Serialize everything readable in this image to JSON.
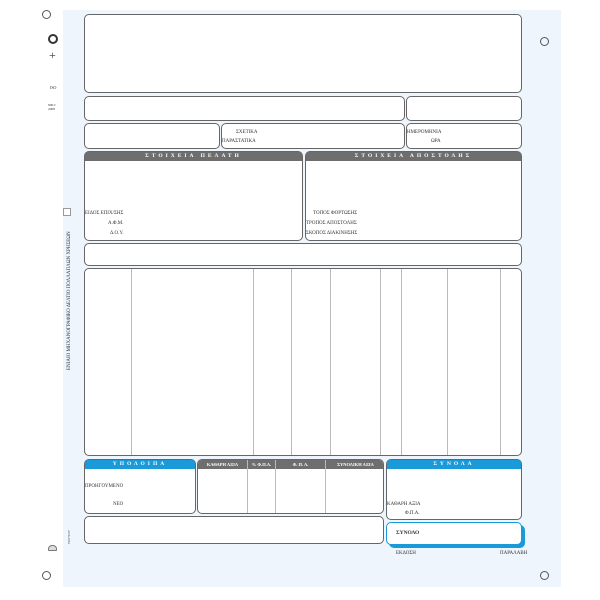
{
  "form": {
    "ref_label": "ΣΧΕΤΙΚΑ",
    "docs_label": "ΠΑΡΑΣΤΑΤΙΚΑ",
    "date_label": "ΗΜΕΡΟΜΗΝΙΑ",
    "time_label": "ΩΡΑ",
    "customer_header": "ΣΤΟΙΧΕΙΑ ΠΕΛΑΤΗ",
    "shipping_header": "ΣΤΟΙΧΕΙΑ ΑΠΟΣΤΟΛΗΣ",
    "customer_fields": [
      "ΕΙΔΟΣ ΕΠΙΧ/ΣΗΣ",
      "Α.Φ.Μ.",
      "Δ.Ο.Υ."
    ],
    "shipping_fields": [
      "ΤΟΠΟΣ ΦΟΡΤΩΣΗΣ",
      "ΤΡΟΠΟΣ ΑΠΟΣΤΟΛΗΣ",
      "ΣΚΟΠΟΣ ΔΙΑΚΙΝΗΣΗΣ"
    ],
    "balance_header": "ΥΠΟΛΟΙΠΑ",
    "balance_fields": [
      "ΠΡΟΗΓΟΥΜΕΝΟ",
      "ΝΕΟ"
    ],
    "tax_columns": [
      "ΚΑΘΑΡΗ ΑΞΙΑ",
      "% Φ.Π.Α.",
      "Φ. Π. Α.",
      "ΣΥΝΟΛΙΚΗ ΑΞΙΑ"
    ],
    "totals_header": "ΣΥΝΟΛΑ",
    "totals_fields": [
      "ΚΑΘΑΡΗ ΑΞΙΑ",
      "Φ.Π.Α."
    ],
    "grand_total_label": "ΣΥΝΟΛΟ",
    "issue_label": "ΕΚΔΟΣΗ",
    "receipt_label": "ΠΑΡΑΛΑΒΗ",
    "side_title": "ΕΝΙΑΙΟ ΜΗΧΑΝΟΓΡΑΦΙΚΟ ΔΕΛΤΙΟ ΠΟΛΛΑΠΛΩΝ ΧΡΗΣΕΩΝ",
    "iso": "ISO",
    "iso_num": "9001: 2008",
    "brand": "ΑΓΚΑΘΑ"
  },
  "colors": {
    "accent": "#1a9ad9",
    "header_gray": "#6e6e6e",
    "background": "#eef5fc"
  }
}
